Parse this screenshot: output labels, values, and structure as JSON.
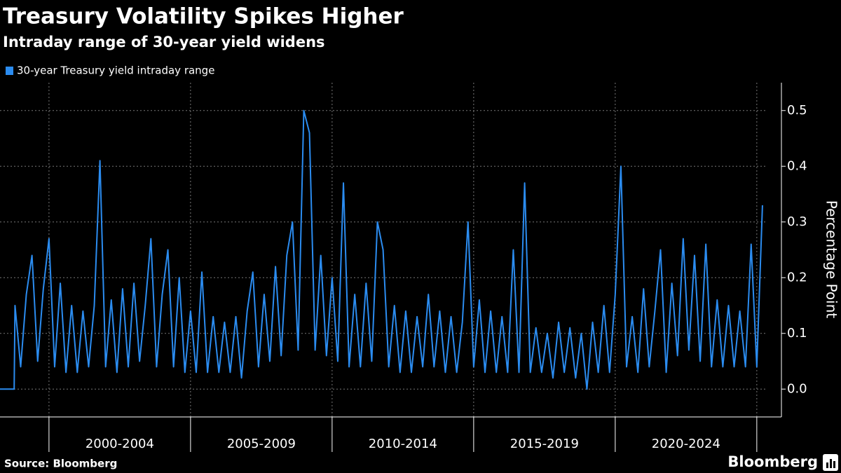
{
  "chart_data": {
    "type": "line",
    "title": "Treasury Volatility Spikes Higher",
    "subtitle": "Intraday range of 30-year yield widens",
    "y_axis_label": "Percentage Point",
    "source": "Source: Bloomberg",
    "brand": "Bloomberg",
    "xlim": [
      1998.27,
      2025.87
    ],
    "ylim": [
      -0.05,
      0.55
    ],
    "yticks": [
      {
        "value": 0,
        "label": "0.0"
      },
      0.1,
      0.2,
      0.3,
      0.4,
      0.5
    ],
    "xgrid": [
      2000,
      2005,
      2010,
      2015,
      2020,
      2025
    ],
    "xtick_labels": [
      {
        "value": 2002.5,
        "label": "2000-2004"
      },
      {
        "value": 2007.5,
        "label": "2005-2009"
      },
      {
        "value": 2012.5,
        "label": "2010-2014"
      },
      {
        "value": 2017.5,
        "label": "2015-2019"
      },
      {
        "value": 2022.5,
        "label": "2020-2024"
      }
    ],
    "grid": true,
    "legend": "top-left",
    "series": [
      {
        "name": "30-year Treasury yield intraday range",
        "color": "#2b8cf0",
        "x": [
          1998.27,
          1998.77,
          1998.8,
          1999.0,
          1999.2,
          1999.4,
          1999.6,
          1999.8,
          2000.0,
          2000.2,
          2000.4,
          2000.6,
          2000.8,
          2001.0,
          2001.2,
          2001.4,
          2001.6,
          2001.8,
          2002.0,
          2002.2,
          2002.4,
          2002.6,
          2002.8,
          2003.0,
          2003.2,
          2003.4,
          2003.6,
          2003.8,
          2004.0,
          2004.2,
          2004.4,
          2004.6,
          2004.8,
          2005.0,
          2005.2,
          2005.4,
          2005.6,
          2005.8,
          2006.0,
          2006.2,
          2006.4,
          2006.6,
          2006.8,
          2007.0,
          2007.2,
          2007.4,
          2007.6,
          2007.8,
          2008.0,
          2008.2,
          2008.4,
          2008.6,
          2008.8,
          2009.0,
          2009.2,
          2009.4,
          2009.6,
          2009.8,
          2010.0,
          2010.2,
          2010.4,
          2010.6,
          2010.8,
          2011.0,
          2011.2,
          2011.4,
          2011.6,
          2011.8,
          2012.0,
          2012.2,
          2012.4,
          2012.6,
          2012.8,
          2013.0,
          2013.2,
          2013.4,
          2013.6,
          2013.8,
          2014.0,
          2014.2,
          2014.4,
          2014.6,
          2014.8,
          2015.0,
          2015.2,
          2015.4,
          2015.6,
          2015.8,
          2016.0,
          2016.2,
          2016.4,
          2016.6,
          2016.8,
          2017.0,
          2017.2,
          2017.4,
          2017.6,
          2017.8,
          2018.0,
          2018.2,
          2018.4,
          2018.6,
          2018.8,
          2019.0,
          2019.2,
          2019.4,
          2019.6,
          2019.8,
          2020.0,
          2020.2,
          2020.4,
          2020.6,
          2020.8,
          2021.0,
          2021.2,
          2021.4,
          2021.6,
          2021.8,
          2022.0,
          2022.2,
          2022.4,
          2022.6,
          2022.8,
          2023.0,
          2023.2,
          2023.4,
          2023.6,
          2023.8,
          2024.0,
          2024.2,
          2024.4,
          2024.6,
          2024.8,
          2025.0,
          2025.2
        ],
        "values": [
          0,
          0,
          0.15,
          0.04,
          0.17,
          0.24,
          0.05,
          0.18,
          0.27,
          0.04,
          0.19,
          0.03,
          0.15,
          0.03,
          0.14,
          0.04,
          0.15,
          0.41,
          0.04,
          0.16,
          0.03,
          0.18,
          0.04,
          0.19,
          0.05,
          0.15,
          0.27,
          0.04,
          0.17,
          0.25,
          0.04,
          0.2,
          0.03,
          0.14,
          0.03,
          0.21,
          0.03,
          0.13,
          0.03,
          0.12,
          0.03,
          0.13,
          0.02,
          0.14,
          0.21,
          0.04,
          0.17,
          0.05,
          0.22,
          0.06,
          0.24,
          0.3,
          0.07,
          0.5,
          0.46,
          0.07,
          0.24,
          0.06,
          0.2,
          0.05,
          0.37,
          0.04,
          0.17,
          0.04,
          0.19,
          0.05,
          0.3,
          0.25,
          0.04,
          0.15,
          0.03,
          0.14,
          0.03,
          0.13,
          0.04,
          0.17,
          0.04,
          0.14,
          0.03,
          0.13,
          0.03,
          0.12,
          0.3,
          0.04,
          0.16,
          0.03,
          0.14,
          0.03,
          0.13,
          0.03,
          0.25,
          0.03,
          0.37,
          0.03,
          0.11,
          0.03,
          0.1,
          0.02,
          0.12,
          0.03,
          0.11,
          0.02,
          0.1,
          0,
          0.12,
          0.03,
          0.15,
          0.03,
          0.17,
          0.4,
          0.04,
          0.13,
          0.03,
          0.18,
          0.04,
          0.14,
          0.25,
          0.03,
          0.19,
          0.06,
          0.27,
          0.07,
          0.24,
          0.05,
          0.26,
          0.04,
          0.16,
          0.04,
          0.15,
          0.04,
          0.14,
          0.04,
          0.26,
          0.04,
          0.33
        ]
      }
    ]
  }
}
